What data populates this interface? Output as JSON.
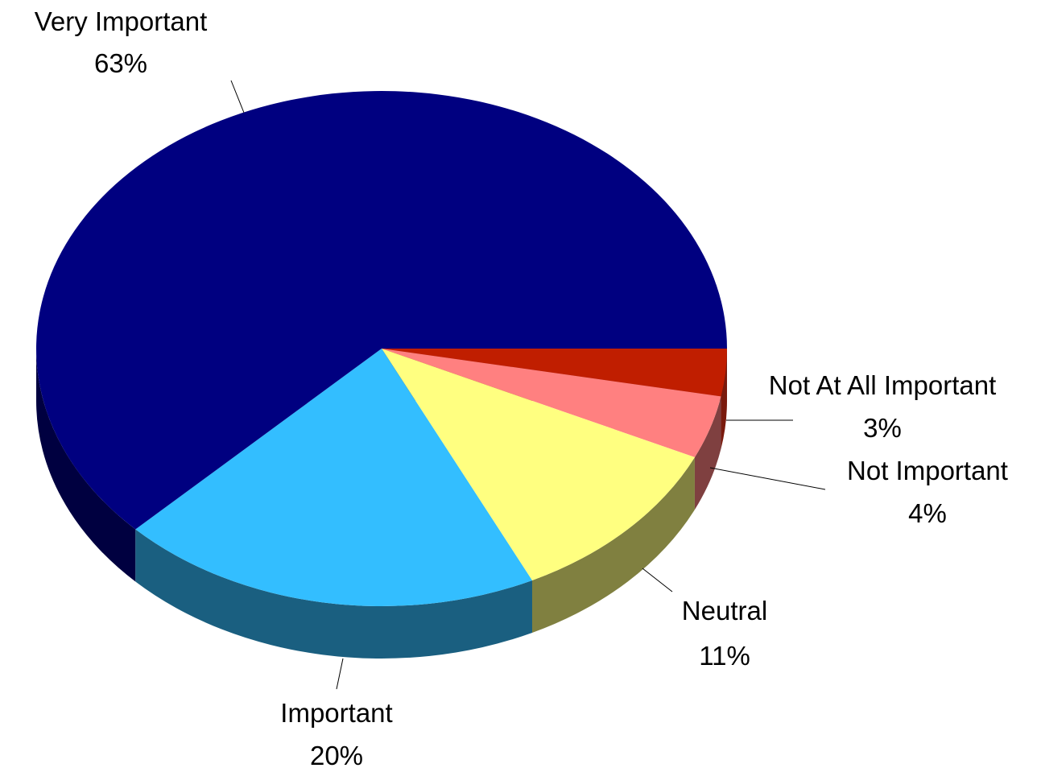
{
  "chart_data": {
    "type": "pie",
    "style": "3d",
    "start": "right",
    "direction": "clockwise",
    "legend": "none",
    "slices": [
      {
        "label": "Not At All Important",
        "value": 3,
        "display": "3%",
        "color": "#C01E00",
        "side_color": "#7A1A0D"
      },
      {
        "label": "Not Important",
        "value": 4,
        "display": "4%",
        "color": "#FF8080",
        "side_color": "#7F4040"
      },
      {
        "label": "Neutral",
        "value": 11,
        "display": "11%",
        "color": "#FFFF80",
        "side_color": "#808040"
      },
      {
        "label": "Important",
        "value": 20,
        "display": "20%",
        "color": "#33BEFF",
        "side_color": "#1A5F80"
      },
      {
        "label": "Very Important",
        "value": 63,
        "display": "63%",
        "color": "#000080",
        "side_color": "#000040"
      }
    ]
  }
}
